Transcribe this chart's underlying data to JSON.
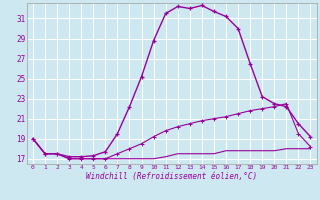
{
  "xlabel": "Windchill (Refroidissement éolien,°C)",
  "bg_color": "#cde8f0",
  "grid_color": "#ffffff",
  "line_color": "#990099",
  "xlim": [
    -0.5,
    23.5
  ],
  "ylim": [
    16.5,
    32.5
  ],
  "yticks": [
    17,
    19,
    21,
    23,
    25,
    27,
    29,
    31
  ],
  "xticks": [
    0,
    1,
    2,
    3,
    4,
    5,
    6,
    7,
    8,
    9,
    10,
    11,
    12,
    13,
    14,
    15,
    16,
    17,
    18,
    19,
    20,
    21,
    22,
    23
  ],
  "hours": [
    0,
    1,
    2,
    3,
    4,
    5,
    6,
    7,
    8,
    9,
    10,
    11,
    12,
    13,
    14,
    15,
    16,
    17,
    18,
    19,
    20,
    21,
    22,
    23
  ],
  "temp": [
    19.0,
    17.5,
    17.5,
    17.2,
    17.2,
    17.3,
    17.7,
    19.5,
    22.2,
    25.2,
    28.8,
    31.5,
    32.2,
    32.0,
    32.3,
    31.7,
    31.2,
    30.0,
    26.5,
    23.2,
    22.5,
    22.2,
    20.5,
    19.2
  ],
  "wc_upper": [
    19.0,
    17.5,
    17.5,
    17.0,
    17.0,
    17.0,
    17.0,
    17.5,
    18.0,
    18.5,
    19.2,
    19.8,
    20.2,
    20.5,
    20.8,
    21.0,
    21.2,
    21.5,
    21.8,
    22.0,
    22.2,
    22.5,
    19.5,
    18.2
  ],
  "wc_lower": [
    19.0,
    17.5,
    17.5,
    17.0,
    17.0,
    17.0,
    17.0,
    17.0,
    17.0,
    17.0,
    17.0,
    17.2,
    17.5,
    17.5,
    17.5,
    17.5,
    17.8,
    17.8,
    17.8,
    17.8,
    17.8,
    18.0,
    18.0,
    18.0
  ]
}
